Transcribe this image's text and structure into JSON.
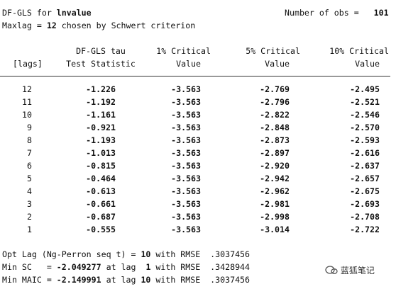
{
  "header": {
    "title_prefix": "DF-GLS for ",
    "variable": "lnvalue",
    "obs_label": "Number of obs =",
    "obs_value": "101",
    "maxlag_prefix": "Maxlag = ",
    "maxlag_value": "12",
    "maxlag_suffix": " chosen by Schwert criterion"
  },
  "table": {
    "columns": [
      [
        "[lags]"
      ],
      [
        "DF-GLS tau",
        "Test Statistic"
      ],
      [
        "1% Critical",
        "Value"
      ],
      [
        "5% Critical",
        "Value"
      ],
      [
        "10% Critical",
        "Value"
      ]
    ],
    "rows": [
      [
        "12",
        "-1.226",
        "-3.563",
        "-2.769",
        "-2.495"
      ],
      [
        "11",
        "-1.192",
        "-3.563",
        "-2.796",
        "-2.521"
      ],
      [
        "10",
        "-1.161",
        "-3.563",
        "-2.822",
        "-2.546"
      ],
      [
        "9",
        "-0.921",
        "-3.563",
        "-2.848",
        "-2.570"
      ],
      [
        "8",
        "-1.193",
        "-3.563",
        "-2.873",
        "-2.593"
      ],
      [
        "7",
        "-1.013",
        "-3.563",
        "-2.897",
        "-2.616"
      ],
      [
        "6",
        "-0.815",
        "-3.563",
        "-2.920",
        "-2.637"
      ],
      [
        "5",
        "-0.464",
        "-3.563",
        "-2.942",
        "-2.657"
      ],
      [
        "4",
        "-0.613",
        "-3.563",
        "-2.962",
        "-2.675"
      ],
      [
        "3",
        "-0.661",
        "-3.563",
        "-2.981",
        "-2.693"
      ],
      [
        "2",
        "-0.687",
        "-3.563",
        "-2.998",
        "-2.708"
      ],
      [
        "1",
        "-0.555",
        "-3.563",
        "-3.014",
        "-2.722"
      ]
    ]
  },
  "footer": [
    [
      "Opt Lag (Ng-Perron seq t) = ",
      "10",
      " with RMSE  .3037456"
    ],
    [
      "Min SC   = ",
      "-2.049277",
      " at lag  ",
      "1",
      " with RMSE  .3428944"
    ],
    [
      "Min MAIC = ",
      "-2.149991",
      " at lag ",
      "10",
      " with RMSE  .3037456"
    ]
  ],
  "watermark": "蓝狐笔记"
}
